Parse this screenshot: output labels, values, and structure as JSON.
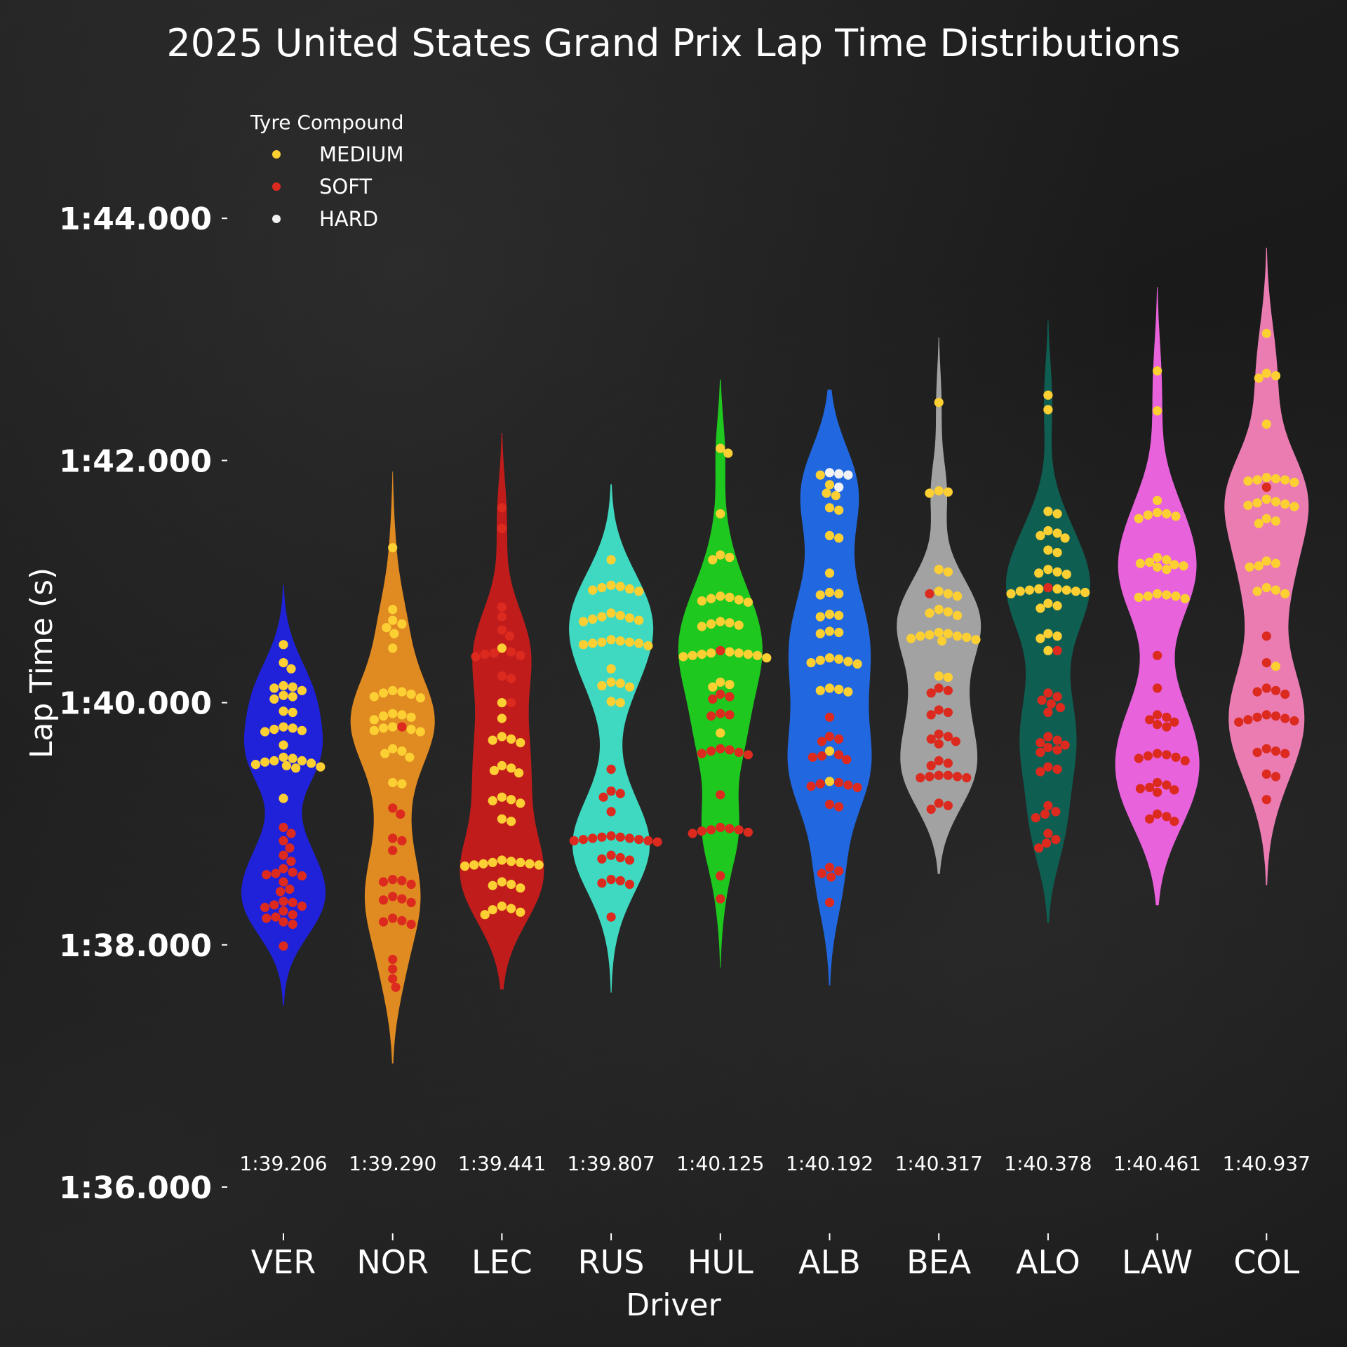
{
  "chart_data": {
    "type": "violin",
    "title": "2025 United States Grand Prix Lap Time Distributions",
    "xlabel": "Driver",
    "ylabel": "Lap Time (s)",
    "ylim_seconds": [
      95.3,
      104.3
    ],
    "yticks": [
      {
        "value": 96,
        "label": "1:36.000"
      },
      {
        "value": 98,
        "label": "1:38.000"
      },
      {
        "value": 100,
        "label": "1:40.000"
      },
      {
        "value": 102,
        "label": "1:42.000"
      },
      {
        "value": 104,
        "label": "1:44.000"
      }
    ],
    "legend": {
      "title": "Tyre Compound",
      "placement": "top-left",
      "items": [
        {
          "label": "MEDIUM",
          "color": "#fccf33"
        },
        {
          "label": "SOFT",
          "color": "#dc2a1f"
        },
        {
          "label": "HARD",
          "color": "#f2f2f2"
        }
      ]
    },
    "drivers": [
      {
        "name": "VER",
        "color": "#1f22d9",
        "median_label": "1:39.206",
        "MEDIUM": [
          100.48,
          100.33,
          100.28,
          100.14,
          100.13,
          100.12,
          100.1,
          100.06,
          100.05,
          100.03,
          99.93,
          99.92,
          99.8,
          99.79,
          99.78,
          99.77,
          99.76,
          99.65,
          99.55,
          99.54,
          99.52,
          99.52,
          99.51,
          99.5,
          99.49,
          99.48,
          99.47,
          99.46,
          99.21
        ],
        "SOFT": [
          98.97,
          98.92,
          98.86,
          98.8,
          98.74,
          98.69,
          98.63,
          98.6,
          98.59,
          98.58,
          98.57,
          98.52,
          98.46,
          98.44,
          98.36,
          98.35,
          98.33,
          98.32,
          98.31,
          98.28,
          98.25,
          98.23,
          98.22,
          98.19,
          98.17,
          97.99
        ],
        "HARD": []
      },
      {
        "name": "NOR",
        "color": "#e08a22",
        "median_label": "1:39.290",
        "MEDIUM": [
          101.28,
          100.77,
          100.68,
          100.65,
          100.62,
          100.57,
          100.45,
          100.1,
          100.09,
          100.08,
          100.07,
          100.05,
          100.04,
          99.91,
          99.9,
          99.89,
          99.88,
          99.86,
          99.8,
          99.79,
          99.78,
          99.77,
          99.76,
          99.62,
          99.6,
          99.58,
          99.55,
          99.34,
          99.33
        ],
        "SOFT": [
          99.8,
          99.13,
          99.08,
          98.88,
          98.86,
          98.78,
          98.54,
          98.53,
          98.52,
          98.5,
          98.4,
          98.38,
          98.37,
          98.35,
          98.22,
          98.2,
          98.19,
          98.17,
          97.88,
          97.8,
          97.72,
          97.65
        ],
        "HARD": []
      },
      {
        "name": "LEC",
        "color": "#c11c1c",
        "median_label": "1:39.441",
        "MEDIUM": [
          100.45,
          100.0,
          99.87,
          99.72,
          99.7,
          99.69,
          99.67,
          99.48,
          99.46,
          99.44,
          99.42,
          99.22,
          99.2,
          99.19,
          99.17,
          99.04,
          99.02,
          98.7,
          98.69,
          98.68,
          98.68,
          98.67,
          98.67,
          98.66,
          98.66,
          98.65,
          98.52,
          98.5,
          98.49,
          98.47,
          98.32,
          98.3,
          98.29,
          98.27,
          98.25
        ],
        "SOFT": [
          101.61,
          101.44,
          100.79,
          100.71,
          100.6,
          100.55,
          100.42,
          100.41,
          100.4,
          100.39,
          100.38,
          100.22,
          100.2,
          100.0
        ],
        "HARD": []
      },
      {
        "name": "RUS",
        "color": "#3fd9c1",
        "median_label": "1:39.807",
        "MEDIUM": [
          101.18,
          100.97,
          100.96,
          100.95,
          100.94,
          100.93,
          100.92,
          100.74,
          100.72,
          100.71,
          100.7,
          100.69,
          100.68,
          100.67,
          100.52,
          100.51,
          100.5,
          100.5,
          100.49,
          100.49,
          100.48,
          100.47,
          100.28,
          100.17,
          100.16,
          100.14,
          100.13,
          100.01,
          100.0
        ],
        "SOFT": [
          99.45,
          99.27,
          99.25,
          99.22,
          99.1,
          98.9,
          98.89,
          98.89,
          98.88,
          98.88,
          98.87,
          98.87,
          98.86,
          98.86,
          98.85,
          98.74,
          98.72,
          98.71,
          98.7,
          98.54,
          98.53,
          98.51,
          98.5,
          98.23
        ],
        "HARD": []
      },
      {
        "name": "HUL",
        "color": "#1ec81e",
        "median_label": "1:40.125",
        "MEDIUM": [
          102.1,
          102.06,
          101.56,
          101.22,
          101.2,
          101.18,
          100.88,
          100.87,
          100.86,
          100.85,
          100.84,
          100.83,
          100.67,
          100.66,
          100.65,
          100.64,
          100.63,
          100.42,
          100.41,
          100.41,
          100.4,
          100.4,
          100.39,
          100.39,
          100.38,
          100.37,
          100.17,
          100.15,
          100.13,
          99.75
        ],
        "SOFT": [
          100.43,
          100.07,
          100.05,
          100.03,
          99.91,
          99.9,
          99.89,
          99.62,
          99.61,
          99.6,
          99.59,
          99.58,
          99.57,
          99.24,
          98.97,
          98.96,
          98.95,
          98.95,
          98.94,
          98.93,
          98.92,
          98.57,
          98.38
        ],
        "HARD": []
      },
      {
        "name": "ALB",
        "color": "#2168e0",
        "median_label": "1:40.192",
        "MEDIUM": [
          101.88,
          101.8,
          101.73,
          101.71,
          101.61,
          101.59,
          101.38,
          101.36,
          101.07,
          100.91,
          100.9,
          100.89,
          100.73,
          100.72,
          100.71,
          100.59,
          100.58,
          100.57,
          100.37,
          100.36,
          100.35,
          100.34,
          100.33,
          100.32,
          100.12,
          100.11,
          100.1,
          100.09,
          99.6,
          99.35
        ],
        "SOFT": [
          99.88,
          99.72,
          99.7,
          99.68,
          99.57,
          99.56,
          99.55,
          99.53,
          99.34,
          99.33,
          99.32,
          99.31,
          99.3,
          99.16,
          99.14,
          98.64,
          98.61,
          98.59,
          98.56,
          98.35
        ],
        "HARD": [
          101.9,
          101.89,
          101.88,
          101.78
        ]
      },
      {
        "name": "BEA",
        "color": "#a2a2a2",
        "median_label": "1:40.317",
        "MEDIUM": [
          102.48,
          101.75,
          101.74,
          101.73,
          101.1,
          101.08,
          100.92,
          100.9,
          100.88,
          100.77,
          100.75,
          100.74,
          100.72,
          100.58,
          100.57,
          100.56,
          100.55,
          100.55,
          100.54,
          100.53,
          100.52,
          100.51,
          100.22,
          100.21
        ],
        "SOFT": [
          100.9,
          100.12,
          100.1,
          100.08,
          99.94,
          99.92,
          99.9,
          99.74,
          99.72,
          99.7,
          99.68,
          99.66,
          99.52,
          99.5,
          99.48,
          99.4,
          99.4,
          99.39,
          99.39,
          99.38,
          99.38,
          99.17,
          99.15,
          99.12
        ],
        "HARD": []
      },
      {
        "name": "ALO",
        "color": "#0f5e52",
        "median_label": "1:40.378",
        "MEDIUM": [
          102.54,
          102.42,
          101.58,
          101.56,
          101.42,
          101.4,
          101.38,
          101.36,
          101.26,
          101.24,
          101.1,
          101.08,
          101.07,
          101.06,
          100.94,
          100.94,
          100.93,
          100.93,
          100.92,
          100.92,
          100.91,
          100.9,
          100.82,
          100.8,
          100.78,
          100.57,
          100.55,
          100.53,
          100.43
        ],
        "SOFT": [
          100.95,
          100.43,
          100.08,
          100.05,
          100.02,
          99.99,
          99.96,
          99.92,
          99.72,
          99.69,
          99.67,
          99.65,
          99.63,
          99.61,
          99.59,
          99.47,
          99.45,
          99.43,
          99.15,
          99.1,
          99.08,
          99.05,
          98.92,
          98.87,
          98.84,
          98.8
        ],
        "HARD": []
      },
      {
        "name": "LAW",
        "color": "#e862dc",
        "median_label": "1:40.461",
        "MEDIUM": [
          102.74,
          102.41,
          101.67,
          101.57,
          101.56,
          101.55,
          101.54,
          101.52,
          101.2,
          101.18,
          101.16,
          101.15,
          101.14,
          101.13,
          101.12,
          101.1,
          100.9,
          100.89,
          100.88,
          100.88,
          100.87,
          100.86
        ],
        "SOFT": [
          100.39,
          100.12,
          99.9,
          99.88,
          99.86,
          99.84,
          99.82,
          99.8,
          99.58,
          99.57,
          99.56,
          99.55,
          99.54,
          99.52,
          99.34,
          99.32,
          99.3,
          99.29,
          99.28,
          99.26,
          99.08,
          99.06,
          99.04,
          99.02
        ],
        "HARD": []
      },
      {
        "name": "COL",
        "color": "#ea7cb2",
        "median_label": "1:40.937",
        "MEDIUM": [
          103.05,
          102.72,
          102.7,
          102.68,
          102.3,
          101.86,
          101.85,
          101.84,
          101.84,
          101.83,
          101.82,
          101.68,
          101.66,
          101.65,
          101.64,
          101.63,
          101.62,
          101.52,
          101.5,
          101.48,
          101.17,
          101.15,
          101.13,
          101.12,
          100.95,
          100.93,
          100.92,
          100.9,
          100.3
        ],
        "SOFT": [
          101.78,
          100.55,
          100.33,
          100.12,
          100.1,
          100.09,
          100.07,
          99.9,
          99.89,
          99.88,
          99.87,
          99.86,
          99.85,
          99.84,
          99.62,
          99.6,
          99.59,
          99.58,
          99.41,
          99.39,
          99.2
        ],
        "HARD": []
      }
    ]
  }
}
